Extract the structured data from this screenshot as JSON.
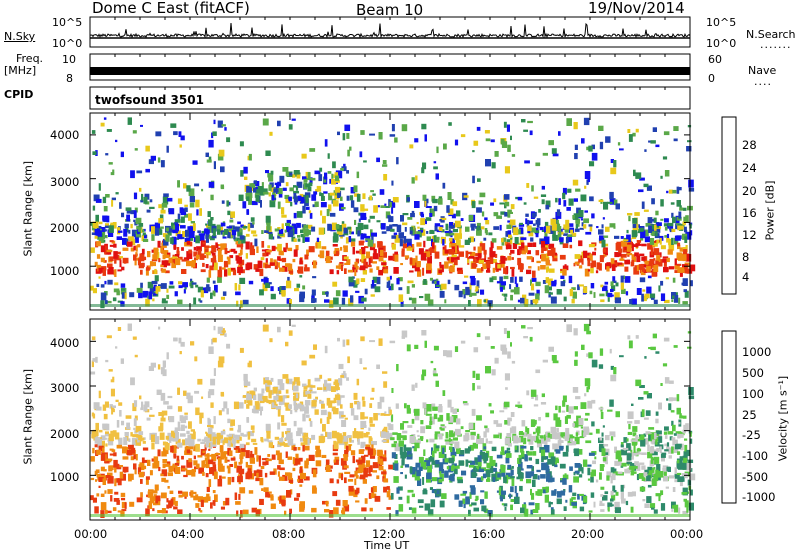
{
  "header": {
    "title": "Dome C East (fitACF)",
    "beam": "Beam 10",
    "date": "19/Nov/2014"
  },
  "strip_labels": {
    "nsky": "N.Sky",
    "nsky_top": "10^5",
    "nsky_bottom": "10^0",
    "nsearch": "N.Search",
    "nsearch_top": "10^5",
    "nsearch_bottom": "10^0",
    "freq_line1": "Freq.",
    "freq_line2": "[MHz]",
    "freq_top": "10",
    "freq_bottom": "8",
    "nave_top": "60",
    "nave_bottom": "0",
    "nave": "Nave",
    "cpid": "CPID",
    "program": "twofsound 3501"
  },
  "chart_data": [
    {
      "type": "heatmap",
      "title": "",
      "ylabel": "Slant Range [km]",
      "xlabel": "Time UT",
      "x_ticks": [
        "00:00",
        "04:00",
        "08:00",
        "12:00",
        "16:00",
        "20:00",
        "00:00"
      ],
      "y_ticks": [
        "1000",
        "2000",
        "3000",
        "4000"
      ],
      "ylim": [
        0,
        4500
      ],
      "xlim_hours": [
        0,
        24
      ],
      "colorbar": {
        "label": "Power [dB]",
        "ticks": [
          "4",
          "8",
          "12",
          "16",
          "20",
          "24",
          "28"
        ],
        "colors": [
          "#1010ee",
          "#2040b0",
          "#2e8a50",
          "#5aa848",
          "#e8c81a",
          "#f08a10",
          "#e83a10",
          "#e01010"
        ]
      }
    },
    {
      "type": "heatmap",
      "title": "",
      "ylabel": "Slant Range [km]",
      "xlabel": "Time UT",
      "x_ticks": [
        "00:00",
        "04:00",
        "08:00",
        "12:00",
        "16:00",
        "20:00",
        "00:00"
      ],
      "y_ticks": [
        "1000",
        "2000",
        "3000",
        "4000"
      ],
      "ylim": [
        0,
        4500
      ],
      "xlim_hours": [
        0,
        24
      ],
      "colorbar": {
        "label": "Velocity [m s⁻¹]",
        "ticks": [
          "1000",
          "500",
          "100",
          "25",
          "-25",
          "-100",
          "-500",
          "-1000"
        ],
        "colors": [
          "#1a3aa8",
          "#2e6aa0",
          "#2e8a6a",
          "#5ac840",
          "#c8c8c8",
          "#f0c040",
          "#f08a10",
          "#e83a10",
          "#e01010"
        ]
      }
    }
  ]
}
